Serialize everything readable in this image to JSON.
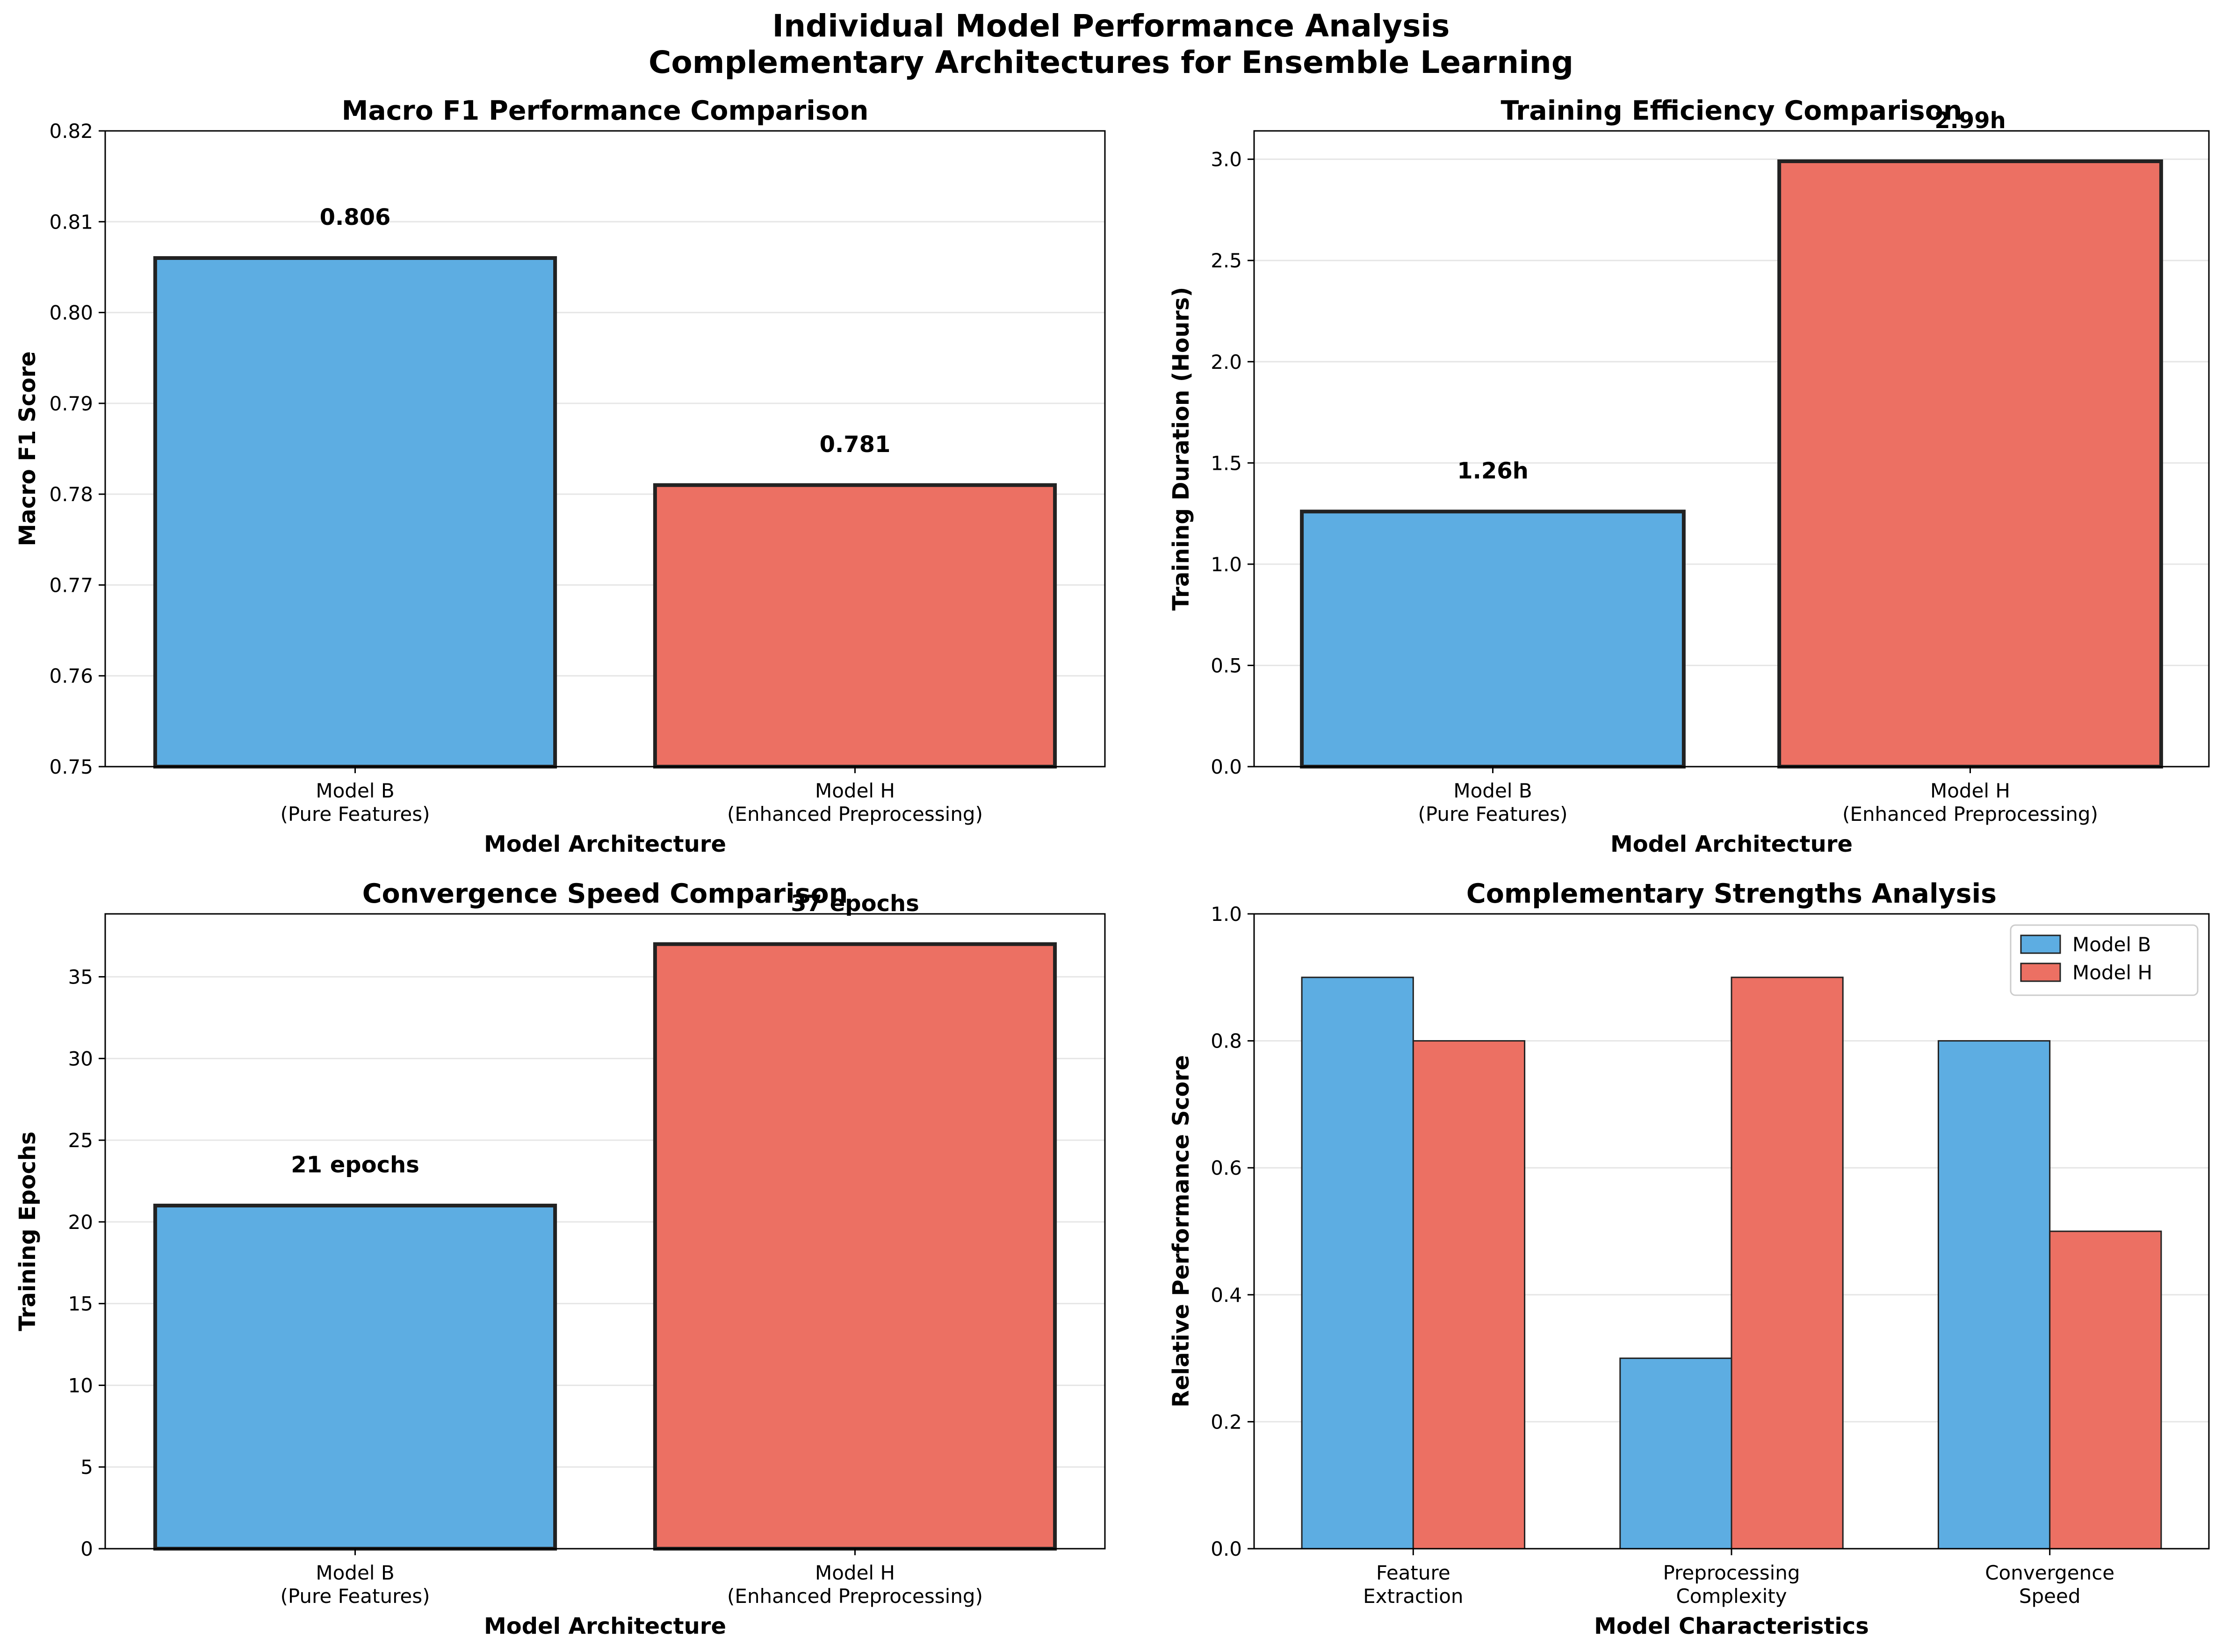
{
  "figure": {
    "title_line1": "Individual Model Performance Analysis",
    "title_line2": "Complementary Architectures for Ensemble Learning"
  },
  "colors": {
    "model_b": "#5dade2",
    "model_h": "#ec7063",
    "edge": "#222222",
    "grid": "#e6e6e6"
  },
  "chart_data": [
    {
      "type": "bar",
      "title": "Macro F1 Performance Comparison",
      "xlabel": "Model Architecture",
      "ylabel": "Macro F1 Score",
      "categories": [
        [
          "Model B",
          "(Pure Features)"
        ],
        [
          "Model H",
          "(Enhanced Preprocessing)"
        ]
      ],
      "values": [
        0.806,
        0.781
      ],
      "value_labels": [
        "0.806",
        "0.781"
      ],
      "ylim": [
        0.75,
        0.82
      ],
      "yticks": [
        0.75,
        0.76,
        0.77,
        0.78,
        0.79,
        0.8,
        0.81,
        0.82
      ],
      "ytick_labels": [
        "0.75",
        "0.76",
        "0.77",
        "0.78",
        "0.79",
        "0.80",
        "0.81",
        "0.82"
      ],
      "grid": "y"
    },
    {
      "type": "bar",
      "title": "Training Efficiency Comparison",
      "xlabel": "Model Architecture",
      "ylabel": "Training Duration (Hours)",
      "categories": [
        [
          "Model B",
          "(Pure Features)"
        ],
        [
          "Model H",
          "(Enhanced Preprocessing)"
        ]
      ],
      "values": [
        1.26,
        2.99
      ],
      "value_labels": [
        "1.26h",
        "2.99h"
      ],
      "ylim": [
        0,
        3.14
      ],
      "yticks": [
        0,
        0.5,
        1,
        1.5,
        2,
        2.5,
        3
      ],
      "ytick_labels": [
        "0.0",
        "0.5",
        "1.0",
        "1.5",
        "2.0",
        "2.5",
        "3.0"
      ],
      "grid": "y"
    },
    {
      "type": "bar",
      "title": "Convergence Speed Comparison",
      "xlabel": "Model Architecture",
      "ylabel": "Training Epochs",
      "categories": [
        [
          "Model B",
          "(Pure Features)"
        ],
        [
          "Model H",
          "(Enhanced Preprocessing)"
        ]
      ],
      "values": [
        21,
        37
      ],
      "value_labels": [
        "21 epochs",
        "37 epochs"
      ],
      "ylim": [
        0,
        38.85
      ],
      "yticks": [
        0,
        5,
        10,
        15,
        20,
        25,
        30,
        35
      ],
      "ytick_labels": [
        "0",
        "5",
        "10",
        "15",
        "20",
        "25",
        "30",
        "35"
      ],
      "grid": "y"
    },
    {
      "type": "bar",
      "title": "Complementary Strengths Analysis",
      "xlabel": "Model Characteristics",
      "ylabel": "Relative Performance Score",
      "categories": [
        [
          "Feature",
          "Extraction"
        ],
        [
          "Preprocessing",
          "Complexity"
        ],
        [
          "Convergence",
          "Speed"
        ]
      ],
      "series": [
        {
          "name": "Model B",
          "values": [
            0.9,
            0.3,
            0.8
          ]
        },
        {
          "name": "Model H",
          "values": [
            0.8,
            0.9,
            0.5
          ]
        }
      ],
      "ylim": [
        0,
        1
      ],
      "yticks": [
        0,
        0.2,
        0.4,
        0.6,
        0.8,
        1
      ],
      "ytick_labels": [
        "0.0",
        "0.2",
        "0.4",
        "0.6",
        "0.8",
        "1.0"
      ],
      "legend": "top-right",
      "grid": "y"
    }
  ]
}
